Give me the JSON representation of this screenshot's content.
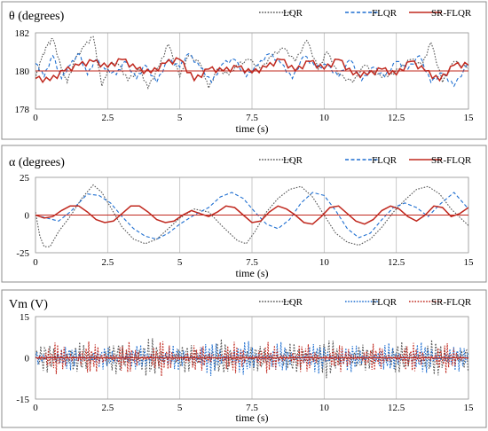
{
  "colors": {
    "lqr": "#555555",
    "flqr": "#1f6fd1",
    "sr": "#c0281e",
    "ref": "#c0281e",
    "grid": "#bdbdbd",
    "frame": "#8c8c8c"
  },
  "chart_data": [
    {
      "type": "line",
      "title": "θ (degrees)",
      "xlabel": "time (s)",
      "xlim": [
        0,
        15
      ],
      "ylim": [
        178,
        182
      ],
      "xticks": [
        "0",
        "2.5",
        "5",
        "7.5",
        "10",
        "12.5",
        "15"
      ],
      "yticks": [
        "178",
        "180",
        "182"
      ],
      "reference_y": 180,
      "legend": "top-right",
      "series": [
        {
          "name": "LQR",
          "style": "dotted",
          "x": [
            0,
            0.2,
            0.4,
            0.6,
            0.9,
            1.1,
            1.4,
            1.7,
            2,
            2.3,
            2.6,
            2.9,
            3.2,
            3.6,
            3.9,
            4.3,
            4.6,
            5,
            5.3,
            5.7,
            6,
            6.3,
            6.7,
            7,
            7.4,
            7.8,
            8.2,
            8.6,
            9,
            9.4,
            9.8,
            10.1,
            10.5,
            11,
            11.4,
            11.8,
            12.2,
            12.6,
            13,
            13.4,
            13.7,
            14.1,
            14.5,
            15
          ],
          "y": [
            179.6,
            180.6,
            181.3,
            181.7,
            180.1,
            179.4,
            180.7,
            181.3,
            181.8,
            179.2,
            180.4,
            180.3,
            179.5,
            180.1,
            179.1,
            180.3,
            181.4,
            179.7,
            180.8,
            180.4,
            179.1,
            180.1,
            179.8,
            180.3,
            180.6,
            180.1,
            180.8,
            181.2,
            180.5,
            181.6,
            180.1,
            181,
            179.8,
            179.4,
            180.3,
            179.8,
            179.7,
            180.1,
            180.6,
            180.3,
            181.5,
            179.4,
            180.5,
            180.1
          ]
        },
        {
          "name": "FLQR",
          "style": "dashed",
          "x": [
            0,
            0.3,
            0.6,
            0.9,
            1.2,
            1.5,
            1.8,
            2.1,
            2.4,
            2.8,
            3.1,
            3.5,
            3.8,
            4.2,
            4.6,
            5,
            5.3,
            5.7,
            6.1,
            6.5,
            6.9,
            7.3,
            7.7,
            8.1,
            8.5,
            8.9,
            9.3,
            9.7,
            10.1,
            10.5,
            10.9,
            11.3,
            11.7,
            12.1,
            12.5,
            12.9,
            13.3,
            13.7,
            14.1,
            14.5,
            15
          ],
          "y": [
            180.4,
            179.7,
            180.8,
            179.6,
            180.3,
            180.9,
            179.8,
            180.6,
            180.1,
            179.8,
            180.5,
            179.6,
            180.3,
            179.4,
            180.6,
            180.2,
            180.9,
            180.2,
            179.4,
            180.4,
            180.6,
            179.7,
            180.3,
            180.9,
            180.4,
            179.6,
            180.8,
            180.2,
            180.3,
            179.7,
            180.6,
            179.5,
            180.2,
            179.7,
            180.5,
            180.1,
            180.8,
            179.4,
            179.9,
            179.2,
            180.4
          ]
        },
        {
          "name": "SR-FLQR",
          "style": "solid",
          "x": [
            0,
            0.5,
            1,
            1.5,
            2,
            2.5,
            3,
            3.5,
            4,
            4.5,
            5,
            5.5,
            6,
            6.5,
            7,
            7.5,
            8,
            8.5,
            9,
            9.5,
            10,
            10.5,
            11,
            11.5,
            12,
            12.5,
            13,
            13.5,
            14,
            14.5,
            15
          ],
          "y": [
            179.6,
            179.5,
            180,
            180.3,
            180.5,
            180.2,
            180.6,
            180.1,
            179.9,
            180.4,
            180.6,
            179.5,
            180.1,
            180,
            180.2,
            179.9,
            180.2,
            180.6,
            180,
            180.5,
            180.1,
            180.6,
            179.8,
            179.8,
            180.1,
            179.8,
            180.5,
            180,
            179.5,
            180.3,
            180.3
          ]
        }
      ]
    },
    {
      "type": "line",
      "title": "α (degrees)",
      "xlabel": "time (s)",
      "xlim": [
        0,
        15
      ],
      "ylim": [
        -25,
        25
      ],
      "xticks": [
        "0",
        "2.5",
        "5",
        "7.5",
        "10",
        "12.5",
        "15"
      ],
      "yticks": [
        "-25",
        "0",
        "25"
      ],
      "reference_y": 0,
      "legend": "top-right",
      "series": [
        {
          "name": "LQR",
          "style": "dotted",
          "x": [
            0,
            0.15,
            0.3,
            0.5,
            0.8,
            1.2,
            1.6,
            2,
            2.3,
            2.7,
            3,
            3.4,
            3.8,
            4.2,
            4.6,
            5,
            5.5,
            6,
            6.5,
            7,
            7.3,
            7.6,
            8,
            8.4,
            8.8,
            9.2,
            9.6,
            10,
            10.4,
            10.8,
            11.2,
            11.6,
            12,
            12.4,
            12.8,
            13.2,
            13.6,
            14,
            14.4,
            15
          ],
          "y": [
            2,
            -14,
            -21,
            -21,
            -11,
            -1,
            11,
            20,
            15,
            2,
            -8,
            -16,
            -19,
            -16,
            -9,
            -2,
            4,
            2,
            -8,
            -17,
            -19,
            -11,
            2,
            11,
            17,
            19,
            12,
            0,
            -12,
            -18,
            -20,
            -16,
            -8,
            2,
            10,
            17,
            19,
            14,
            4,
            -7
          ]
        },
        {
          "name": "FLQR",
          "style": "dashed",
          "x": [
            0,
            0.4,
            0.8,
            1.2,
            1.5,
            1.8,
            2.2,
            2.6,
            3,
            3.4,
            3.8,
            4.2,
            4.6,
            5,
            5.5,
            6,
            6.4,
            6.8,
            7.2,
            7.6,
            8,
            8.4,
            8.8,
            9.2,
            9.6,
            10,
            10.4,
            10.8,
            11.2,
            11.6,
            12,
            12.4,
            12.8,
            13.2,
            13.6,
            14,
            14.5,
            15
          ],
          "y": [
            0,
            -2,
            -4,
            2,
            8,
            14,
            13,
            8,
            -1,
            -9,
            -14,
            -16,
            -12,
            -6,
            0,
            5,
            12,
            15,
            11,
            2,
            -6,
            -9,
            -3,
            8,
            15,
            13,
            3,
            -9,
            -15,
            -12,
            -3,
            5,
            8,
            5,
            -1,
            7,
            15,
            4
          ]
        },
        {
          "name": "SR-FLQR",
          "style": "solid",
          "x": [
            0,
            0.3,
            0.6,
            0.9,
            1.2,
            1.5,
            1.8,
            2.1,
            2.4,
            2.7,
            3,
            3.3,
            3.6,
            3.9,
            4.2,
            4.5,
            4.8,
            5.1,
            5.4,
            5.7,
            6,
            6.3,
            6.6,
            6.9,
            7.2,
            7.5,
            7.8,
            8.1,
            8.4,
            8.7,
            9,
            9.3,
            9.6,
            9.9,
            10.2,
            10.5,
            10.8,
            11.1,
            11.4,
            11.7,
            12,
            12.3,
            12.6,
            12.9,
            13.2,
            13.5,
            13.8,
            14.1,
            14.4,
            14.7,
            15
          ],
          "y": [
            0,
            -2,
            -1,
            3,
            6,
            6,
            2,
            -3,
            -5,
            -4,
            1,
            6,
            6,
            2,
            -3,
            -5,
            -4,
            0,
            3,
            1,
            -1,
            2,
            6,
            5,
            0,
            -5,
            -4,
            2,
            6,
            4,
            0,
            -5,
            -6,
            -1,
            5,
            6,
            1,
            -4,
            -6,
            -3,
            3,
            6,
            4,
            -1,
            -4,
            0,
            6,
            5,
            -1,
            1,
            5
          ]
        }
      ]
    },
    {
      "type": "line",
      "title": "Vm (V)",
      "xlabel": "time (s)",
      "xlim": [
        0,
        15
      ],
      "ylim": [
        -15,
        15
      ],
      "xticks": [
        "0",
        "2.5",
        "5",
        "7.5",
        "10",
        "12.5",
        "15"
      ],
      "yticks": [
        "-15",
        "0",
        "15"
      ],
      "reference_y": 0,
      "legend": "top-right",
      "series": [
        {
          "name": "LQR",
          "style": "dotted",
          "x": [
            0,
            0.7,
            1.4,
            2.1,
            2.8,
            3.5,
            4.2,
            4.9,
            5.6,
            6.3,
            7,
            7.7,
            8.4,
            9.1,
            9.8,
            10.5,
            11.2,
            11.9,
            12.6,
            13.3,
            14,
            14.7,
            15
          ],
          "amplitude": [
            4,
            7,
            6,
            5,
            6,
            9,
            7,
            5,
            6,
            7,
            6,
            5,
            5,
            6,
            8,
            7,
            5,
            5,
            6,
            7,
            7,
            5,
            5
          ]
        },
        {
          "name": "FLQR",
          "style": "dotted",
          "x": [
            0,
            0.7,
            1.4,
            2.1,
            2.8,
            3.5,
            4.2,
            4.9,
            5.6,
            6.3,
            7,
            7.7,
            8.4,
            9.1,
            9.8,
            10.5,
            11.2,
            11.9,
            12.6,
            13.3,
            14,
            14.7,
            15
          ],
          "amplitude": [
            3,
            4,
            5,
            4,
            5,
            5,
            4,
            5,
            6,
            7,
            7,
            6,
            6,
            5,
            6,
            6,
            5,
            5,
            6,
            6,
            6,
            5,
            4
          ]
        },
        {
          "name": "SR-FLQR",
          "style": "dotted",
          "x": [
            0,
            0.7,
            1.4,
            2.1,
            2.8,
            3.5,
            4.2,
            4.9,
            5.6,
            6.3,
            7,
            7.7,
            8.4,
            9.1,
            9.8,
            10.5,
            11.2,
            11.9,
            12.6,
            13.3,
            14,
            14.7,
            15
          ],
          "amplitude": [
            4,
            6,
            7,
            6,
            6,
            6,
            7,
            6,
            5,
            6,
            6,
            6,
            6,
            6,
            5,
            5,
            6,
            5,
            5,
            6,
            6,
            5,
            5
          ]
        }
      ]
    }
  ]
}
